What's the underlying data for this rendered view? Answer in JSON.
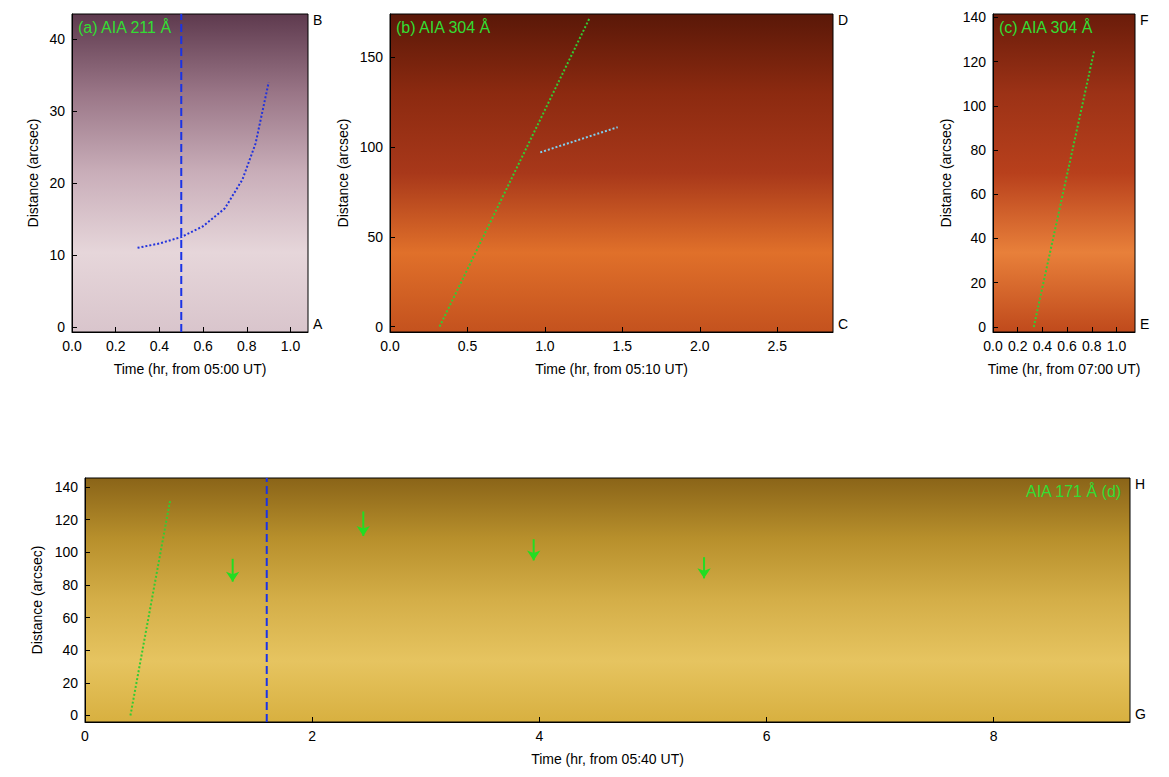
{
  "chart_data": [
    {
      "type": "line",
      "xlabel": "Time (hr, from 05:00 UT)",
      "ylabel": "Distance (arcsec)",
      "xlim": [
        0,
        1.08
      ],
      "xticks": [
        {
          "value": 0,
          "label": "0.0"
        },
        {
          "value": 0.2,
          "label": "0.2"
        },
        {
          "value": 0.4,
          "label": "0.4"
        },
        {
          "value": 0.6,
          "label": "0.6"
        },
        {
          "value": 0.8,
          "label": "0.8"
        },
        {
          "value": 1,
          "label": "1.0"
        }
      ],
      "ylim": [
        -0.7,
        43.5
      ],
      "yticks": [
        0,
        10,
        20,
        30,
        40
      ],
      "grid": false,
      "annotations": [
        {
          "text": "(a) AIA 211 Å",
          "position": "inside upper left",
          "color": "#33dd33"
        },
        {
          "text": "B",
          "position": "outside upper right",
          "color": "#000000"
        },
        {
          "text": "A",
          "position": "outside lower right",
          "color": "#000000"
        }
      ],
      "series": [
        {
          "x": [
            0.3,
            0.4,
            0.5,
            0.6,
            0.7,
            0.78,
            0.84,
            0.9
          ],
          "values": [
            11,
            11.6,
            12.5,
            14,
            16.5,
            20.5,
            25.5,
            34
          ],
          "color": "#2233dd",
          "line_style": "dotted"
        }
      ],
      "vlines": [
        {
          "x": 0.5,
          "color": "#1a33e6",
          "line_style": "dashed"
        }
      ]
    },
    {
      "type": "line",
      "xlabel": "Time (hr, from 05:10 UT)",
      "ylabel": "Distance (arcsec)",
      "xlim": [
        0,
        2.86
      ],
      "xticks": [
        {
          "value": 0,
          "label": "0.0"
        },
        {
          "value": 0.5,
          "label": "0.5"
        },
        {
          "value": 1,
          "label": "1.0"
        },
        {
          "value": 1.5,
          "label": "1.5"
        },
        {
          "value": 2,
          "label": "2.0"
        },
        {
          "value": 2.5,
          "label": "2.5"
        }
      ],
      "ylim": [
        -3,
        174
      ],
      "yticks": [
        0,
        50,
        100,
        150
      ],
      "grid": false,
      "annotations": [
        {
          "text": "(b) AIA 304 Å",
          "position": "inside upper left",
          "color": "#33dd33"
        },
        {
          "text": "D",
          "position": "outside upper right",
          "color": "#000000"
        },
        {
          "text": "C",
          "position": "outside lower right",
          "color": "#000000"
        }
      ],
      "series": [
        {
          "x": [
            0.32,
            1.29
          ],
          "values": [
            0,
            172
          ],
          "color": "#33cc33",
          "line_style": "dotted"
        },
        {
          "x": [
            0.97,
            1.47
          ],
          "values": [
            97,
            111
          ],
          "color": "#7fd0f0",
          "line_style": "dotted"
        }
      ]
    },
    {
      "type": "line",
      "xlabel": "Time (hr, from 07:00 UT)",
      "ylabel": "Distance (arcsec)",
      "xlim": [
        0,
        1.15
      ],
      "xticks": [
        {
          "value": 0,
          "label": "0.0"
        },
        {
          "value": 0.2,
          "label": "0.2"
        },
        {
          "value": 0.4,
          "label": "0.4"
        },
        {
          "value": 0.6,
          "label": "0.6"
        },
        {
          "value": 0.8,
          "label": "0.8"
        },
        {
          "value": 1,
          "label": "1.0"
        }
      ],
      "ylim": [
        -2.3,
        141.5
      ],
      "yticks": [
        0,
        20,
        40,
        60,
        80,
        100,
        120,
        140
      ],
      "grid": false,
      "annotations": [
        {
          "text": "(c) AIA 304 Å",
          "position": "inside upper left",
          "color": "#33dd33"
        },
        {
          "text": "F",
          "position": "outside upper right",
          "color": "#000000"
        },
        {
          "text": "E",
          "position": "outside lower right",
          "color": "#000000"
        }
      ],
      "series": [
        {
          "x": [
            0.33,
            0.82
          ],
          "values": [
            0,
            125
          ],
          "color": "#33cc33",
          "line_style": "dotted"
        }
      ]
    },
    {
      "type": "line",
      "xlabel": "Time (hr, from 05:40 UT)",
      "ylabel": "Distance (arcsec)",
      "xlim": [
        0,
        9.2
      ],
      "xticks": [
        0,
        2,
        4,
        6,
        8
      ],
      "ylim": [
        -4,
        145.5
      ],
      "yticks": [
        0,
        20,
        40,
        60,
        80,
        100,
        120,
        140
      ],
      "grid": false,
      "annotations": [
        {
          "text": "AIA 171 Å (d)",
          "position": "inside upper right",
          "color": "#33dd33"
        },
        {
          "text": "H",
          "position": "outside upper right",
          "color": "#000000"
        },
        {
          "text": "G",
          "position": "outside lower right",
          "color": "#000000"
        }
      ],
      "series": [
        {
          "x": [
            0.4,
            0.75
          ],
          "values": [
            0,
            132
          ],
          "color": "#33cc33",
          "line_style": "dotted"
        }
      ],
      "vlines": [
        {
          "x": 1.6,
          "color": "#1a33e6",
          "line_style": "dashed"
        }
      ],
      "arrows": [
        {
          "x": 1.3,
          "from": 96,
          "to": 82,
          "color": "#22dd22"
        },
        {
          "x": 2.45,
          "from": 125,
          "to": 110,
          "color": "#22dd22"
        },
        {
          "x": 3.95,
          "from": 108,
          "to": 95,
          "color": "#22dd22"
        },
        {
          "x": 5.45,
          "from": 97,
          "to": 84,
          "color": "#22dd22"
        }
      ]
    }
  ]
}
